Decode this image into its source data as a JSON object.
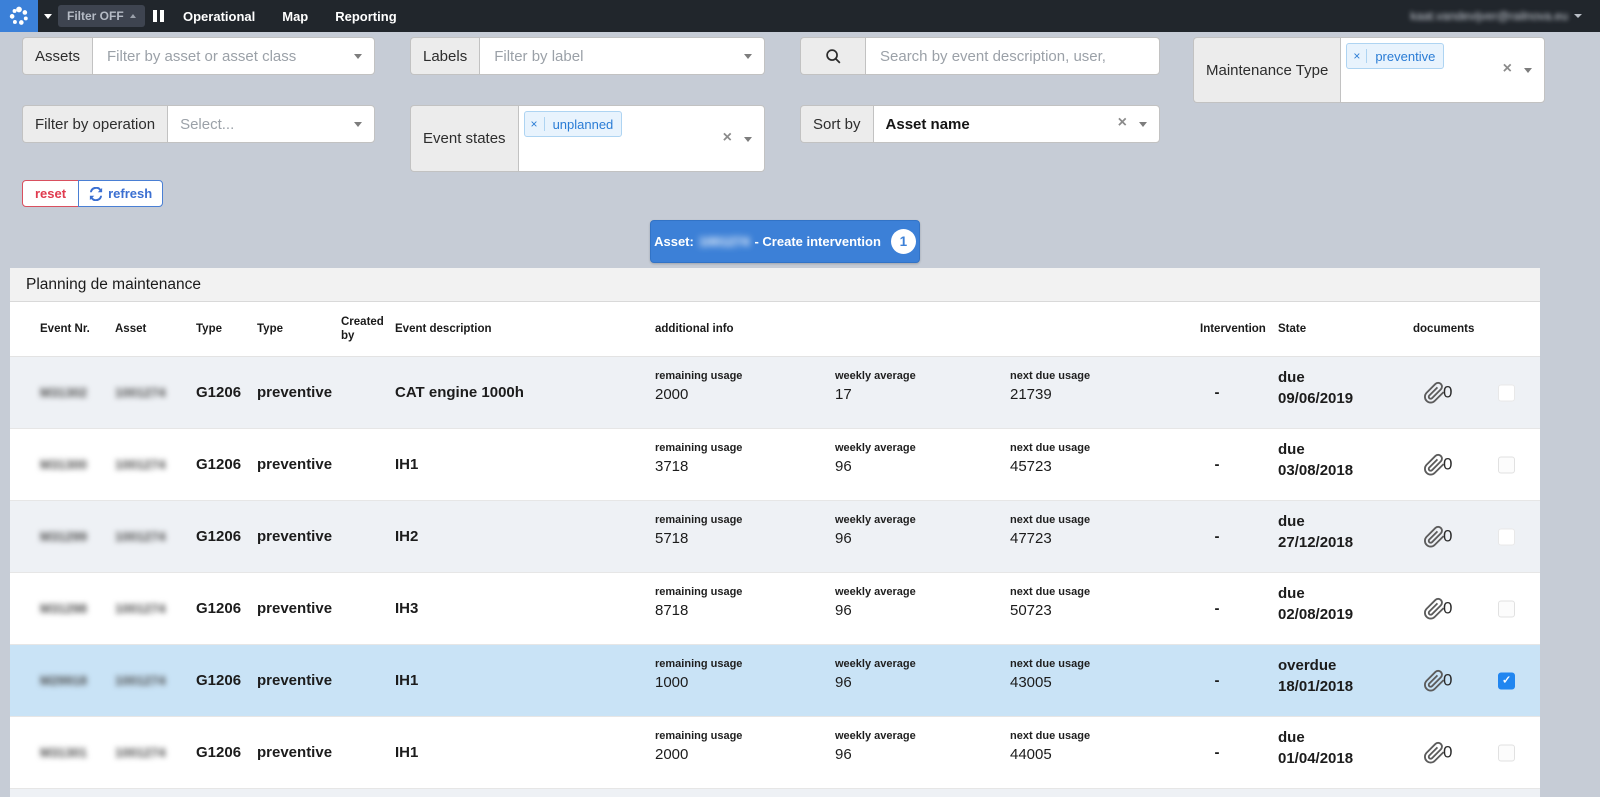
{
  "navbar": {
    "filter_button_label": "Filter OFF",
    "menu_items": [
      "Operational",
      "Map",
      "Reporting"
    ],
    "user_email": "kaat.vandevijver@railnova.eu"
  },
  "filters": {
    "assets_label": "Assets",
    "assets_placeholder": "Filter by asset or asset class",
    "labels_label": "Labels",
    "labels_placeholder": "Filter by label",
    "search_placeholder": "Search by event description, user,",
    "maintenance_type_label": "Maintenance Type",
    "maintenance_type_tag": "preventive",
    "operation_label": "Filter by operation",
    "operation_placeholder": "Select...",
    "event_states_label": "Event states",
    "event_states_tag": "unplanned",
    "sort_by_label": "Sort by",
    "sort_by_value": "Asset name",
    "reset_label": "reset",
    "refresh_label": "refresh"
  },
  "action_bar": {
    "asset_prefix": "Asset:",
    "asset_number": "1001274",
    "action_text": "- Create intervention",
    "badge_count": "1"
  },
  "icons": {
    "clear": "×",
    "tag_remove": "×"
  },
  "colors": {
    "accent_blue": "#3c80d7",
    "selected_row": "#c9e3f6",
    "tag_blue": "#2a7cd5",
    "checkbox_checked": "#2186f0",
    "reset_red": "#e03b4f",
    "navbar_dark": "#21262c",
    "page_background": "#c6ccd6"
  },
  "table": {
    "title": "Planning de maintenance",
    "columns": [
      "Event Nr.",
      "Asset",
      "Type",
      "Type",
      "Created by",
      "Event description",
      "additional info",
      "Intervention",
      "State",
      "documents"
    ],
    "info_labels": {
      "remaining": "remaining usage",
      "weekly": "weekly average",
      "next_due": "next due usage"
    },
    "rows": [
      {
        "event_nr": "M31302",
        "asset": "1001274",
        "type": "G1206",
        "type2": "preventive",
        "description": "CAT engine 1000h",
        "remaining": "2000",
        "weekly": "17",
        "next_due": "21739",
        "intervention": "-",
        "state": "due",
        "state_date": "09/06/2019",
        "documents": "0",
        "checked": false,
        "selected": false
      },
      {
        "event_nr": "M31300",
        "asset": "1001274",
        "type": "G1206",
        "type2": "preventive",
        "description": "IH1",
        "remaining": "3718",
        "weekly": "96",
        "next_due": "45723",
        "intervention": "-",
        "state": "due",
        "state_date": "03/08/2018",
        "documents": "0",
        "checked": false,
        "selected": false
      },
      {
        "event_nr": "M31299",
        "asset": "1001274",
        "type": "G1206",
        "type2": "preventive",
        "description": "IH2",
        "remaining": "5718",
        "weekly": "96",
        "next_due": "47723",
        "intervention": "-",
        "state": "due",
        "state_date": "27/12/2018",
        "documents": "0",
        "checked": false,
        "selected": false
      },
      {
        "event_nr": "M31298",
        "asset": "1001274",
        "type": "G1206",
        "type2": "preventive",
        "description": "IH3",
        "remaining": "8718",
        "weekly": "96",
        "next_due": "50723",
        "intervention": "-",
        "state": "due",
        "state_date": "02/08/2019",
        "documents": "0",
        "checked": false,
        "selected": false
      },
      {
        "event_nr": "M29918",
        "asset": "1001274",
        "type": "G1206",
        "type2": "preventive",
        "description": "IH1",
        "remaining": "1000",
        "weekly": "96",
        "next_due": "43005",
        "intervention": "-",
        "state": "overdue",
        "state_date": "18/01/2018",
        "documents": "0",
        "checked": true,
        "selected": true
      },
      {
        "event_nr": "M31301",
        "asset": "1001274",
        "type": "G1206",
        "type2": "preventive",
        "description": "IH1",
        "remaining": "2000",
        "weekly": "96",
        "next_due": "44005",
        "intervention": "-",
        "state": "due",
        "state_date": "01/04/2018",
        "documents": "0",
        "checked": false,
        "selected": false
      }
    ]
  }
}
